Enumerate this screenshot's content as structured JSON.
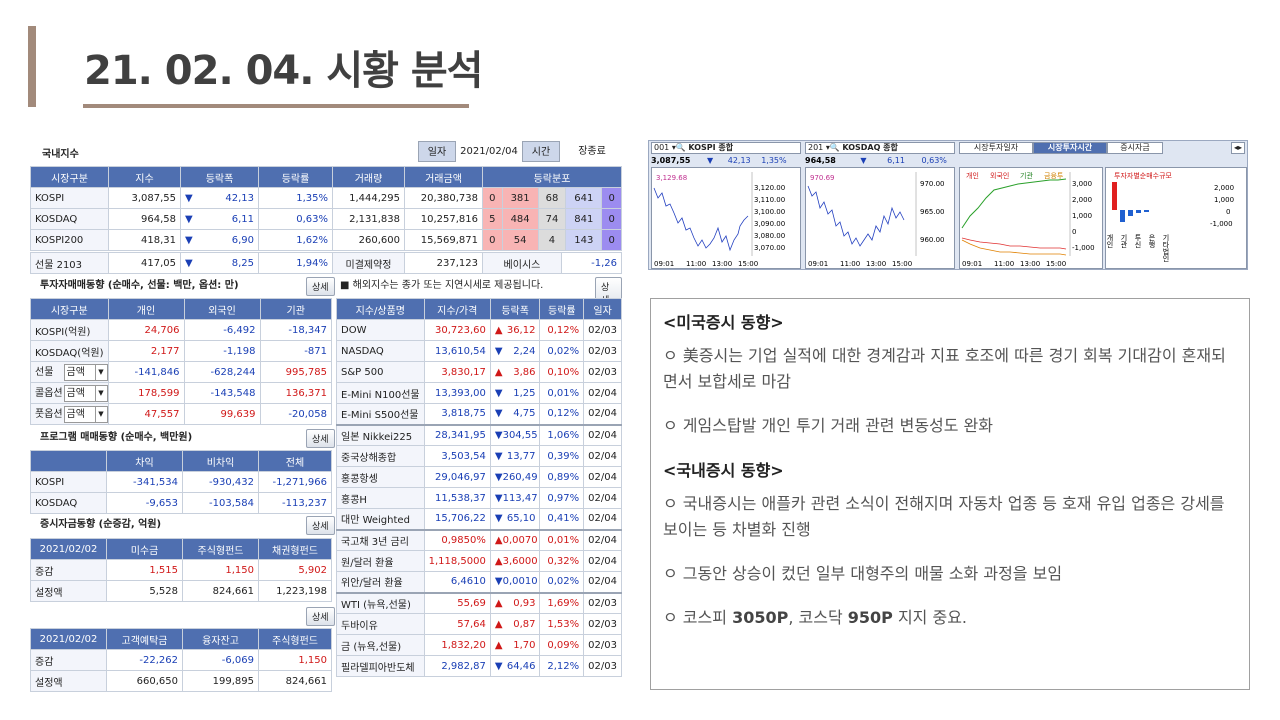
{
  "title": "21. 02. 04. 시황 분석",
  "domestic": {
    "label": "국내지수",
    "date_label": "일자",
    "date": "2021/02/04",
    "time_label": "시간",
    "time_value": "장종료",
    "headers": [
      "시장구분",
      "지수",
      "등락폭",
      "등락률",
      "거래량",
      "거래금액",
      "등락분포"
    ],
    "rows": [
      {
        "name": "KOSPI",
        "index": "3,087,55",
        "dir": "▼",
        "chg": "42,13",
        "pct": "1,35%",
        "vol": "1,444,295",
        "amt": "20,380,738",
        "d": [
          "0",
          "381",
          "68",
          "641",
          "0"
        ]
      },
      {
        "name": "KOSDAQ",
        "index": "964,58",
        "dir": "▼",
        "chg": "6,11",
        "pct": "0,63%",
        "vol": "2,131,838",
        "amt": "10,257,816",
        "d": [
          "5",
          "484",
          "74",
          "841",
          "0"
        ]
      },
      {
        "name": "KOSPI200",
        "index": "418,31",
        "dir": "▼",
        "chg": "6,90",
        "pct": "1,62%",
        "vol": "260,600",
        "amt": "15,569,871",
        "d": [
          "0",
          "54",
          "4",
          "143",
          "0"
        ]
      }
    ],
    "futures": {
      "name": "선물 2103",
      "index": "417,05",
      "dir": "▼",
      "chg": "8,25",
      "pct": "1,94%",
      "open_label": "미결제약정",
      "open": "237,123",
      "basis_label": "베이시스",
      "basis": "-1,26"
    }
  },
  "investor": {
    "label": "투자자매매동향 (순매수, 선물: 백만, 옵션: 만)",
    "detail": "상세",
    "headers": [
      "시장구분",
      "개인",
      "외국인",
      "기관"
    ],
    "rows": [
      {
        "name": "KOSPI(억원)",
        "a": "24,706",
        "b": "-6,492",
        "c": "-18,347",
        "sel": ""
      },
      {
        "name": "KOSDAQ(억원)",
        "a": "2,177",
        "b": "-1,198",
        "c": "-871",
        "sel": ""
      },
      {
        "name": "선물",
        "a": "-141,846",
        "b": "-628,244",
        "c": "995,785",
        "sel": "금액"
      },
      {
        "name": "콜옵션",
        "a": "178,599",
        "b": "-143,548",
        "c": "136,371",
        "sel": "금액"
      },
      {
        "name": "풋옵션",
        "a": "47,557",
        "b": "99,639",
        "c": "-20,058",
        "sel": "금액"
      }
    ]
  },
  "program": {
    "label": "프로그램 매매동향 (순매수, 백만원)",
    "detail": "상세",
    "headers": [
      "",
      "차익",
      "비차익",
      "전체"
    ],
    "rows": [
      {
        "name": "KOSPI",
        "a": "-341,534",
        "b": "-930,432",
        "c": "-1,271,966"
      },
      {
        "name": "KOSDAQ",
        "a": "-9,653",
        "b": "-103,584",
        "c": "-113,237"
      }
    ]
  },
  "deposit": {
    "label": "증시자금동향 (순증감, 억원)",
    "detail": "상세",
    "headers": [
      "2021/02/02",
      "미수금",
      "주식형펀드",
      "채권형펀드"
    ],
    "rows": [
      {
        "name": "증감",
        "a": "1,515",
        "b": "1,150",
        "c": "5,902"
      },
      {
        "name": "설정액",
        "a": "5,528",
        "b": "824,661",
        "c": "1,223,198"
      }
    ],
    "detail2": "상세",
    "headers2": [
      "2021/02/02",
      "고객예탁금",
      "융자잔고",
      "주식형펀드"
    ],
    "rows2": [
      {
        "name": "증감",
        "a": "-22,262",
        "b": "-6,069",
        "c": "1,150"
      },
      {
        "name": "설정액",
        "a": "660,650",
        "b": "199,895",
        "c": "824,661"
      }
    ]
  },
  "overseas": {
    "label": "■ 해외지수는 종가 또는 지연시세로 제공됩니다.",
    "detail": "상세",
    "headers": [
      "지수/상품명",
      "지수/가격",
      "등락폭",
      "등락률",
      "일자"
    ],
    "groups": [
      [
        {
          "name": "DOW",
          "v": "30,723,60",
          "dir": "▲",
          "chg": "36,12",
          "pct": "0,12%",
          "date": "02/03",
          "up": true
        },
        {
          "name": "NASDAQ",
          "v": "13,610,54",
          "dir": "▼",
          "chg": "2,24",
          "pct": "0,02%",
          "date": "02/03",
          "up": false
        },
        {
          "name": "S&P 500",
          "v": "3,830,17",
          "dir": "▲",
          "chg": "3,86",
          "pct": "0,10%",
          "date": "02/03",
          "up": true
        },
        {
          "name": "E-Mini N100선물",
          "v": "13,393,00",
          "dir": "▼",
          "chg": "1,25",
          "pct": "0,01%",
          "date": "02/04",
          "up": false
        },
        {
          "name": "E-Mini S500선물",
          "v": "3,818,75",
          "dir": "▼",
          "chg": "4,75",
          "pct": "0,12%",
          "date": "02/04",
          "up": false
        }
      ],
      [
        {
          "name": "일본 Nikkei225",
          "v": "28,341,95",
          "dir": "▼",
          "chg": "304,55",
          "pct": "1,06%",
          "date": "02/04",
          "up": false
        },
        {
          "name": "중국상해종합",
          "v": "3,503,54",
          "dir": "▼",
          "chg": "13,77",
          "pct": "0,39%",
          "date": "02/04",
          "up": false
        },
        {
          "name": "홍콩항셍",
          "v": "29,046,97",
          "dir": "▼",
          "chg": "260,49",
          "pct": "0,89%",
          "date": "02/04",
          "up": false
        },
        {
          "name": "홍콩H",
          "v": "11,538,37",
          "dir": "▼",
          "chg": "113,47",
          "pct": "0,97%",
          "date": "02/04",
          "up": false
        },
        {
          "name": "대만 Weighted",
          "v": "15,706,22",
          "dir": "▼",
          "chg": "65,10",
          "pct": "0,41%",
          "date": "02/04",
          "up": false
        }
      ],
      [
        {
          "name": "국고채 3년 금리",
          "v": "0,9850%",
          "dir": "▲",
          "chg": "0,0070",
          "pct": "0,01%",
          "date": "02/04",
          "up": true
        },
        {
          "name": "원/달러 환율",
          "v": "1,118,5000",
          "dir": "▲",
          "chg": "3,6000",
          "pct": "0,32%",
          "date": "02/04",
          "up": true
        },
        {
          "name": "위안/달러 환율",
          "v": "6,4610",
          "dir": "▼",
          "chg": "0,0010",
          "pct": "0,02%",
          "date": "02/04",
          "up": false
        }
      ],
      [
        {
          "name": "WTI (뉴욕,선물)",
          "v": "55,69",
          "dir": "▲",
          "chg": "0,93",
          "pct": "1,69%",
          "date": "02/03",
          "up": true
        },
        {
          "name": "두바이유",
          "v": "57,64",
          "dir": "▲",
          "chg": "0,87",
          "pct": "1,53%",
          "date": "02/03",
          "up": true
        },
        {
          "name": "금 (뉴욕,선물)",
          "v": "1,832,20",
          "dir": "▲",
          "chg": "1,70",
          "pct": "0,09%",
          "date": "02/03",
          "up": true
        },
        {
          "name": "필라델피아반도체",
          "v": "2,982,87",
          "dir": "▼",
          "chg": "64,46",
          "pct": "2,12%",
          "date": "02/03",
          "up": false
        }
      ]
    ]
  },
  "charts": {
    "kospi": {
      "code": "001",
      "name": "KOSPI 종합",
      "value": "3,087,55",
      "dir": "▼",
      "chg": "42,13",
      "pct": "1,35%",
      "high": "3,129.68",
      "ticks": [
        "3,120.00",
        "3,110.00",
        "3,100.00",
        "3,090.00",
        "3,080.00",
        "3,070.00"
      ],
      "times": [
        "09:01",
        "11:00",
        "13:00",
        "15:00"
      ]
    },
    "kosdaq": {
      "code": "201",
      "name": "KOSDAQ 종합",
      "value": "964,58",
      "dir": "▼",
      "chg": "6,11",
      "pct": "0,63%",
      "high": "970.69",
      "ticks": [
        "970.00",
        "965.00",
        "960.00"
      ],
      "times": [
        "09:01",
        "11:00",
        "13:00",
        "15:00"
      ]
    },
    "investor": {
      "tabs": [
        "시장투자일자",
        "시장투자시간",
        "증시자금"
      ],
      "legend": [
        "개인",
        "외국인",
        "기관",
        "금융투"
      ],
      "ticks": [
        "3,000",
        "2,000",
        "1,000",
        "0",
        "-1,000"
      ],
      "times": [
        "09:01",
        "11:00",
        "13:00",
        "15:00"
      ],
      "scale_title": "투자자별순매수규모",
      "scale_ticks": [
        "2,000",
        "1,000",
        "0",
        "-1,000"
      ],
      "cats": [
        "개인",
        "기관",
        "투신",
        "은행",
        "기타법인"
      ]
    }
  },
  "notes": {
    "us_title": "<미국증시 동향>",
    "us_1": "ㅇ 美증시는 기업 실적에 대한 경계감과 지표 호조에 따른 경기 회복 기대감이 혼재되면서 보합세로 마감",
    "us_2": "ㅇ 게임스탑발 개인 투기 거래 관련 변동성도 완화",
    "kr_title": "<국내증시 동향>",
    "kr_1": "ㅇ 국내증시는 애플카 관련 소식이 전해지며 자동차 업종 등 호재 유입 업종은 강세를 보이는 등 차별화 진행",
    "kr_2": "ㅇ 그동안 상승이 컸던 일부 대형주의 매물 소화 과정을 보임",
    "kr_3_pre": "ㅇ 코스피 ",
    "kr_3_b1": "3050P",
    "kr_3_mid": ", 코스닥 ",
    "kr_3_b2": "950P",
    "kr_3_post": " 지지 중요."
  }
}
